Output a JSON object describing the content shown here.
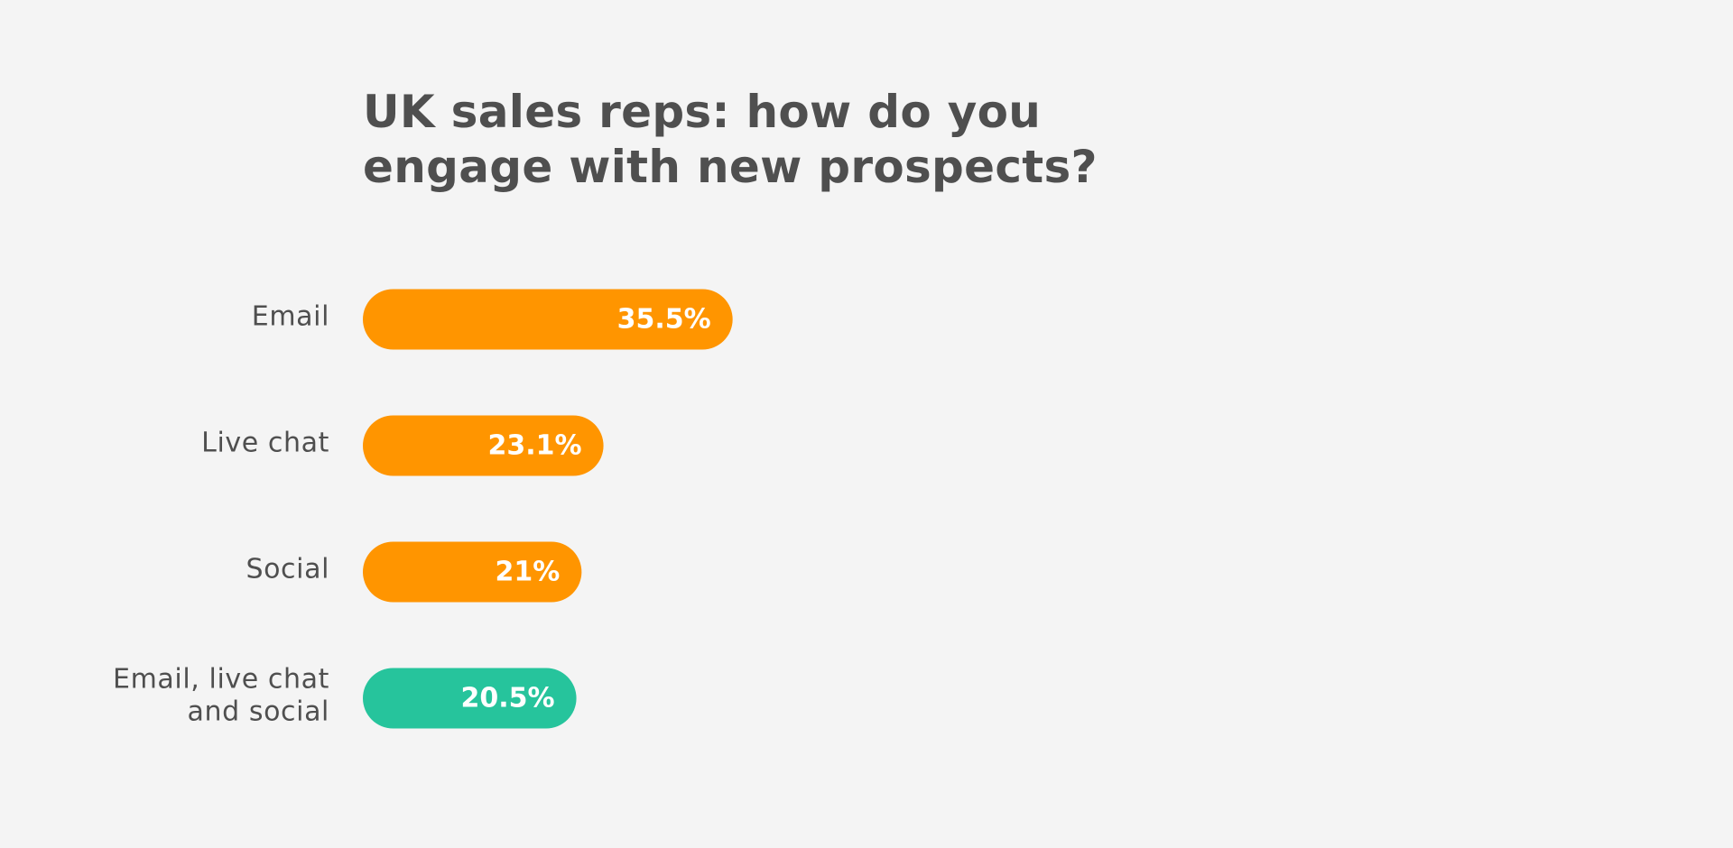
{
  "chart_data": {
    "type": "bar",
    "orientation": "horizontal",
    "title_lines": [
      "UK sales reps: how do you",
      "engage with new prospects?"
    ],
    "categories": [
      [
        "Email"
      ],
      [
        "Live chat"
      ],
      [
        "Social"
      ],
      [
        "Email, live chat",
        "and social"
      ]
    ],
    "values": [
      35.5,
      23.1,
      21,
      20.5
    ],
    "value_labels": [
      "35.5%",
      "23.1%",
      "21%",
      "20.5%"
    ],
    "bar_colors": [
      "#ff9500",
      "#ff9500",
      "#ff9500",
      "#26c49c"
    ],
    "xlim": [
      0,
      100
    ],
    "grid": false,
    "legend": "none",
    "xlabel": "",
    "ylabel": ""
  }
}
